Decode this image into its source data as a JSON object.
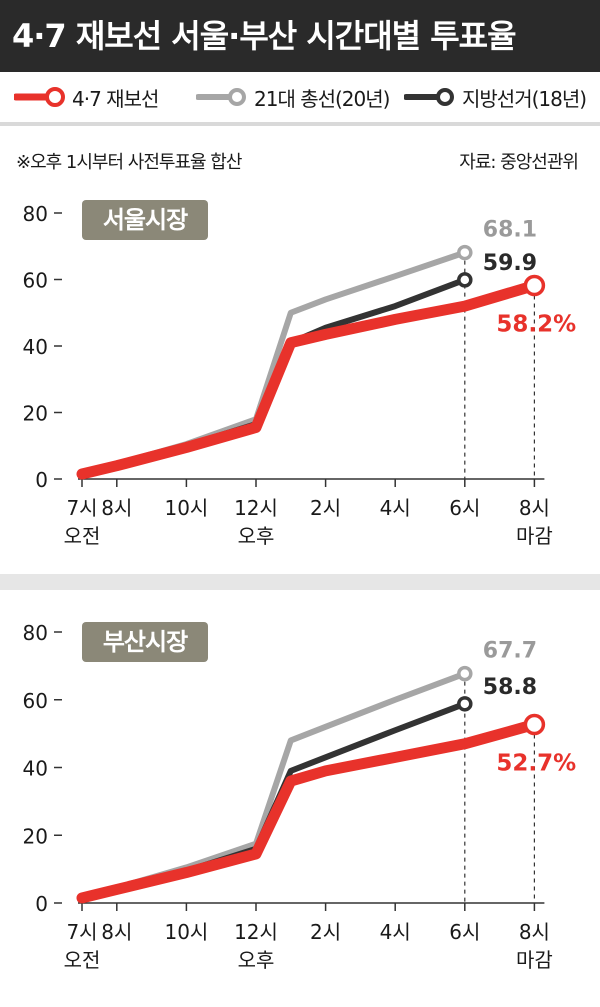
{
  "header": {
    "title": "4·7 재보선 서울·부산 시간대별 투표율"
  },
  "legend": [
    {
      "label": "4·7 재보선",
      "color": "#e8322b"
    },
    {
      "label": "21대 총선(20년)",
      "color": "#a6a6a6"
    },
    {
      "label": "지방선거(18년)",
      "color": "#333333"
    }
  ],
  "note": "※오후 1시부터 사전투표율 합산",
  "source": "자료: 중앙선관위",
  "colors": {
    "red": "#e8322b",
    "gray": "#a6a6a6",
    "dark": "#333333",
    "badge": "#8b8878"
  },
  "chart_data": [
    {
      "type": "line",
      "title": "서울시장",
      "x": [
        7,
        8,
        10,
        12,
        13,
        14,
        16,
        18,
        20
      ],
      "x_tick_labels": [
        {
          "x": 7,
          "line1": "7시",
          "line2": "오전"
        },
        {
          "x": 8,
          "line1": "8시",
          "line2": ""
        },
        {
          "x": 10,
          "line1": "10시",
          "line2": ""
        },
        {
          "x": 12,
          "line1": "12시",
          "line2": "오후"
        },
        {
          "x": 14,
          "line1": "2시",
          "line2": ""
        },
        {
          "x": 16,
          "line1": "4시",
          "line2": ""
        },
        {
          "x": 18,
          "line1": "6시",
          "line2": ""
        },
        {
          "x": 20,
          "line1": "8시",
          "line2": "마감"
        }
      ],
      "ylim": [
        0,
        80
      ],
      "yticks": [
        0,
        20,
        40,
        60,
        80
      ],
      "series": [
        {
          "name": "21대 총선(20년)",
          "x": [
            7,
            8,
            10,
            12,
            13,
            14,
            16,
            18
          ],
          "values": [
            1.5,
            4.5,
            10.5,
            18,
            50,
            54,
            61,
            68.1
          ],
          "final_label": "68.1"
        },
        {
          "name": "지방선거(18년)",
          "x": [
            7,
            8,
            10,
            12,
            13,
            14,
            16,
            18
          ],
          "values": [
            1.5,
            4,
            10,
            16.5,
            41,
            45.5,
            52,
            59.9
          ],
          "final_label": "59.9"
        },
        {
          "name": "4·7 재보선",
          "x": [
            7,
            8,
            10,
            12,
            13,
            14,
            16,
            18,
            20
          ],
          "values": [
            1.5,
            4,
            9.5,
            15.5,
            41,
            43.5,
            48,
            52,
            58.2
          ],
          "final_label": "58.2%"
        }
      ]
    },
    {
      "type": "line",
      "title": "부산시장",
      "x": [
        7,
        8,
        10,
        12,
        13,
        14,
        16,
        18,
        20
      ],
      "x_tick_labels": [
        {
          "x": 7,
          "line1": "7시",
          "line2": "오전"
        },
        {
          "x": 8,
          "line1": "8시",
          "line2": ""
        },
        {
          "x": 10,
          "line1": "10시",
          "line2": ""
        },
        {
          "x": 12,
          "line1": "12시",
          "line2": "오후"
        },
        {
          "x": 14,
          "line1": "2시",
          "line2": ""
        },
        {
          "x": 16,
          "line1": "4시",
          "line2": ""
        },
        {
          "x": 18,
          "line1": "6시",
          "line2": ""
        },
        {
          "x": 20,
          "line1": "8시",
          "line2": "마감"
        }
      ],
      "ylim": [
        0,
        80
      ],
      "yticks": [
        0,
        20,
        40,
        60,
        80
      ],
      "series": [
        {
          "name": "21대 총선(20년)",
          "x": [
            7,
            8,
            10,
            12,
            13,
            14,
            16,
            18
          ],
          "values": [
            1.5,
            4.5,
            10.5,
            17.5,
            48,
            52,
            60,
            67.7
          ],
          "final_label": "67.7"
        },
        {
          "name": "지방선거(18년)",
          "x": [
            7,
            8,
            10,
            12,
            13,
            14,
            16,
            18
          ],
          "values": [
            1.5,
            4,
            9.5,
            16,
            39,
            43,
            51,
            58.8
          ],
          "final_label": "58.8"
        },
        {
          "name": "4·7 재보선",
          "x": [
            7,
            8,
            10,
            12,
            13,
            14,
            16,
            18,
            20
          ],
          "values": [
            1.5,
            4,
            9,
            14.5,
            36,
            39,
            43,
            47,
            52.7
          ],
          "final_label": "52.7%"
        }
      ]
    }
  ]
}
